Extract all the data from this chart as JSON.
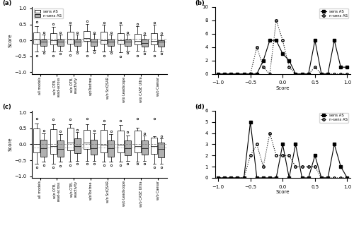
{
  "panel_a": {
    "categories": [
      "all models",
      "w/o OTB,\nread-across",
      "w/o OTB,\nreactivity",
      "w/oToxtree",
      "w/o SciQSAR",
      "w/o Leadscope",
      "w/o CASE Ultra",
      "w/o Caesar"
    ],
    "sens_boxes": {
      "medians": [
        0.02,
        0.0,
        0.02,
        0.08,
        0.0,
        0.0,
        -0.02,
        -0.02
      ],
      "q1": [
        -0.1,
        -0.12,
        -0.1,
        -0.02,
        -0.1,
        -0.1,
        -0.12,
        -0.12
      ],
      "q3": [
        0.25,
        0.22,
        0.28,
        0.3,
        0.28,
        0.22,
        0.2,
        0.22
      ],
      "whislo": [
        -0.35,
        -0.35,
        -0.32,
        -0.35,
        -0.35,
        -0.38,
        -0.32,
        -0.32
      ],
      "whishi": [
        0.45,
        0.42,
        0.5,
        0.52,
        0.48,
        0.48,
        0.45,
        0.48
      ],
      "fliers_high": [
        0.58,
        0.52,
        0.55,
        0.6,
        0.55,
        0.55,
        0.52,
        0.55
      ],
      "fliers_low": [
        -0.48,
        -0.48,
        -0.45,
        -0.48,
        -0.48,
        -0.5,
        -0.48,
        -0.48
      ],
      "fliers_high2": [
        null,
        null,
        null,
        null,
        null,
        null,
        null,
        null
      ]
    },
    "nsens_boxes": {
      "medians": [
        -0.05,
        -0.05,
        -0.05,
        -0.05,
        -0.05,
        -0.05,
        -0.08,
        -0.05
      ],
      "q1": [
        -0.18,
        -0.18,
        -0.18,
        -0.18,
        -0.18,
        -0.18,
        -0.2,
        -0.2
      ],
      "q3": [
        0.02,
        0.02,
        0.02,
        0.05,
        0.02,
        0.02,
        0.02,
        0.0
      ],
      "whislo": [
        -0.32,
        -0.32,
        -0.32,
        -0.3,
        -0.32,
        -0.32,
        -0.35,
        -0.35
      ],
      "whishi": [
        0.18,
        0.18,
        0.18,
        0.2,
        0.18,
        0.18,
        0.15,
        0.15
      ],
      "fliers_high": [
        0.25,
        0.25,
        0.25,
        0.25,
        0.25,
        0.25,
        0.22,
        0.22
      ],
      "fliers_low": [
        -0.4,
        -0.42,
        -0.4,
        -0.38,
        -0.4,
        -0.4,
        -0.42,
        -0.42
      ]
    },
    "sens_dotted_line": 0.04,
    "nsens_dotted_line": -0.05,
    "ylim": [
      -1.05,
      1.05
    ],
    "yticks": [
      -1.0,
      -0.5,
      0.0,
      0.5,
      1.0
    ]
  },
  "panel_b": {
    "score_x": [
      -1.0,
      -0.9,
      -0.8,
      -0.7,
      -0.6,
      -0.5,
      -0.4,
      -0.3,
      -0.2,
      -0.1,
      0.0,
      0.1,
      0.2,
      0.3,
      0.4,
      0.5,
      0.6,
      0.7,
      0.8,
      0.9,
      1.0
    ],
    "sens_y": [
      0,
      0,
      0,
      0,
      0,
      0,
      0,
      2,
      5,
      5,
      3,
      2,
      0,
      0,
      0,
      5,
      0,
      0,
      5,
      1,
      1
    ],
    "nsens_y": [
      0,
      0,
      0,
      0,
      0,
      0,
      4,
      1,
      0,
      8,
      5,
      1,
      0,
      0,
      0,
      1,
      0,
      0,
      0,
      0,
      0
    ],
    "ylim": [
      0,
      10
    ],
    "yticks": [
      0,
      2,
      4,
      6,
      8,
      10
    ]
  },
  "panel_c": {
    "categories": [
      "all models",
      "w/o OTB,\nread-across",
      "w/o OTB,\nreactivity",
      "w/oToxtree",
      "w/o SciQSAR",
      "w/o Leadscope",
      "w/o CASE Ultra",
      "w/o Caesar"
    ],
    "sens_boxes": {
      "medians": [
        0.02,
        -0.05,
        0.05,
        0.05,
        -0.02,
        -0.02,
        -0.05,
        -0.05
      ],
      "q1": [
        -0.25,
        -0.3,
        -0.2,
        -0.15,
        -0.25,
        -0.25,
        -0.25,
        -0.3
      ],
      "q3": [
        0.5,
        0.48,
        0.52,
        0.45,
        0.45,
        0.42,
        0.42,
        0.2
      ],
      "whislo": [
        -0.62,
        -0.62,
        -0.55,
        -0.52,
        -0.55,
        -0.55,
        -0.55,
        -0.62
      ],
      "whishi": [
        0.65,
        0.62,
        0.62,
        0.62,
        0.62,
        0.6,
        0.52,
        0.25
      ],
      "fliers_high": [
        0.8,
        0.78,
        0.78,
        0.8,
        0.75,
        0.75,
        0.8,
        0.8
      ],
      "fliers_low": [
        -0.72,
        -0.72,
        -0.65,
        -0.62,
        -0.65,
        -0.65,
        -0.62,
        -0.72
      ],
      "fliers_low2": [
        null,
        null,
        null,
        null,
        null,
        null,
        null,
        null
      ]
    },
    "nsens_boxes": {
      "medians": [
        -0.12,
        -0.15,
        -0.05,
        -0.12,
        -0.12,
        -0.12,
        -0.12,
        -0.15
      ],
      "q1": [
        -0.38,
        -0.38,
        -0.28,
        -0.32,
        -0.38,
        -0.35,
        -0.32,
        -0.42
      ],
      "q3": [
        0.15,
        0.12,
        0.18,
        0.15,
        0.12,
        0.12,
        0.12,
        0.05
      ],
      "whislo": [
        -0.55,
        -0.55,
        -0.52,
        -0.52,
        -0.55,
        -0.52,
        -0.52,
        -0.6
      ],
      "whishi": [
        0.35,
        0.32,
        0.38,
        0.35,
        0.32,
        0.28,
        0.28,
        0.18
      ],
      "fliers_high": [
        0.42,
        0.4,
        0.45,
        0.42,
        0.4,
        0.38,
        0.35,
        0.25
      ],
      "fliers_low": [
        -0.65,
        -0.68,
        -0.62,
        -0.62,
        -0.65,
        -0.62,
        -0.62,
        -0.72
      ]
    },
    "sens_dotted_line": 0.0,
    "nsens_dotted_line": -0.1,
    "ylim": [
      -1.05,
      1.05
    ],
    "yticks": [
      -1.0,
      -0.5,
      0.0,
      0.5,
      1.0
    ]
  },
  "panel_d": {
    "score_x": [
      -1.0,
      -0.9,
      -0.8,
      -0.7,
      -0.6,
      -0.5,
      -0.4,
      -0.3,
      -0.2,
      -0.1,
      0.0,
      0.1,
      0.2,
      0.3,
      0.4,
      0.5,
      0.6,
      0.7,
      0.8,
      0.9,
      1.0
    ],
    "sens_y": [
      0,
      0,
      0,
      0,
      0,
      5,
      0,
      0,
      0,
      0,
      3,
      0,
      3,
      0,
      0,
      2,
      0,
      0,
      3,
      1,
      0
    ],
    "nsens_y": [
      0,
      0,
      0,
      0,
      0,
      2,
      3,
      1,
      4,
      2,
      2,
      2,
      1,
      1,
      1,
      1,
      0,
      0,
      0,
      0,
      0
    ],
    "ylim": [
      0,
      6
    ],
    "yticks": [
      0,
      1,
      2,
      3,
      4,
      5,
      6
    ]
  },
  "colors": {
    "sens_box": "#ffffff",
    "nsens_box": "#b0b0b0",
    "dotted_line_sens": "#888888",
    "dotted_line_nsens": "#888888"
  }
}
